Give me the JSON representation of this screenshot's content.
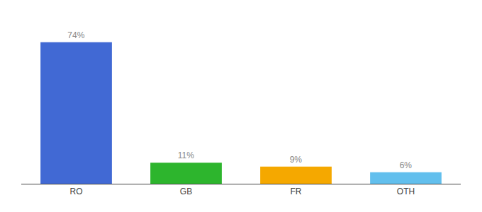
{
  "chart_data": {
    "type": "bar",
    "categories": [
      "RO",
      "GB",
      "FR",
      "OTH"
    ],
    "values": [
      74,
      11,
      9,
      6
    ],
    "value_labels": [
      "74%",
      "11%",
      "9%",
      "6%"
    ],
    "colors": [
      "#4169d4",
      "#2db52d",
      "#f5a800",
      "#62bfed"
    ],
    "ylim": [
      0,
      85
    ],
    "data_labels": true,
    "tick_labels": "x",
    "grid": false
  }
}
